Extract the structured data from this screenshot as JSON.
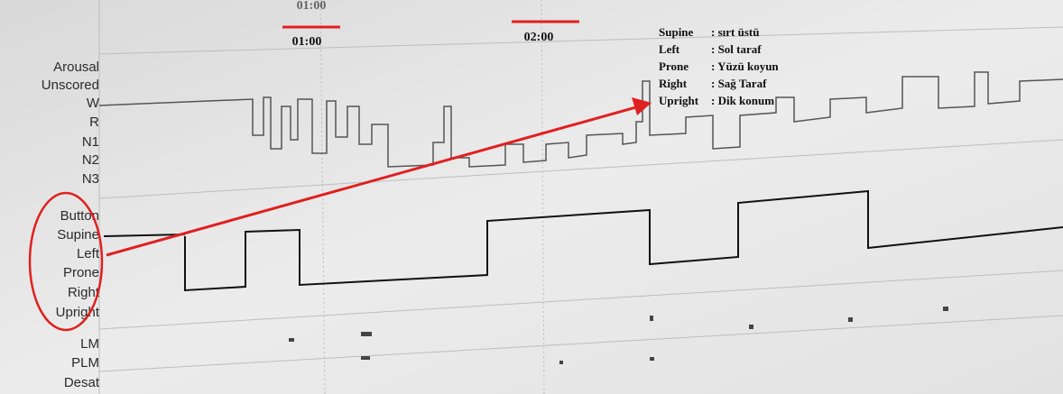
{
  "top_time_label": "01:00",
  "time_labels": [
    "01:00",
    "02:00"
  ],
  "stage_labels": [
    "Arousal",
    "Unscored",
    "W",
    "R",
    "N1",
    "N2",
    "N3"
  ],
  "position_labels": [
    "Button",
    "Supine",
    "Left",
    "Prone",
    "Right",
    "Upright"
  ],
  "leg_labels": [
    "LM",
    "PLM",
    "Desat"
  ],
  "legend": [
    {
      "term": "Supine",
      "meaning": ": sırt üstü"
    },
    {
      "term": "Left",
      "meaning": ": Sol taraf"
    },
    {
      "term": "Prone",
      "meaning": ": Yüzü koyun"
    },
    {
      "term": "Right",
      "meaning": ": Sağ Taraf"
    },
    {
      "term": "Upright",
      "meaning": ": Dik konum"
    }
  ]
}
